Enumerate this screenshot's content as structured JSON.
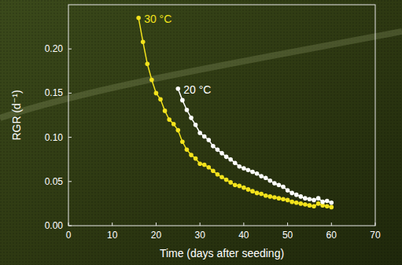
{
  "chart_data": {
    "type": "line",
    "x_label": "Time  (days after seeding)",
    "y_label": "RGR (d⁻¹)",
    "x": [
      16,
      17,
      18,
      19,
      20,
      21,
      22,
      23,
      24,
      25,
      26,
      27,
      28,
      29,
      30,
      31,
      32,
      33,
      34,
      35,
      36,
      37,
      38,
      39,
      40,
      41,
      42,
      43,
      44,
      45,
      46,
      47,
      48,
      49,
      50,
      51,
      52,
      53,
      54,
      55,
      56,
      57,
      58,
      59,
      60
    ],
    "series": [
      {
        "name": "30 °C",
        "color": "#f2e21c",
        "marker": "circle",
        "line_style": "solid",
        "values": [
          0.235,
          0.208,
          0.183,
          0.165,
          0.15,
          0.143,
          0.13,
          0.12,
          0.115,
          0.108,
          0.095,
          0.086,
          0.08,
          0.076,
          0.07,
          0.069,
          0.066,
          0.062,
          0.058,
          0.055,
          0.052,
          0.049,
          0.046,
          0.045,
          0.043,
          0.041,
          0.039,
          0.037,
          0.036,
          0.034,
          0.033,
          0.032,
          0.031,
          0.03,
          0.029,
          0.027,
          0.026,
          0.025,
          0.024,
          0.023,
          0.022,
          0.025,
          0.023,
          0.022,
          0.021
        ]
      },
      {
        "name": "20 °C",
        "color": "#ffffff",
        "marker": "circle",
        "line_style": "solid",
        "values": [
          null,
          null,
          null,
          null,
          null,
          null,
          null,
          null,
          null,
          0.155,
          0.142,
          0.131,
          0.122,
          0.114,
          0.105,
          0.101,
          0.097,
          0.09,
          0.086,
          0.082,
          0.078,
          0.075,
          0.071,
          0.067,
          0.065,
          0.063,
          0.061,
          0.059,
          0.056,
          0.054,
          0.051,
          0.048,
          0.046,
          0.044,
          0.04,
          0.037,
          0.035,
          0.033,
          0.031,
          0.03,
          0.029,
          0.031,
          0.027,
          0.028,
          0.026
        ]
      }
    ],
    "xlim": [
      0,
      70
    ],
    "xticks": [
      0,
      10,
      20,
      30,
      40,
      50,
      60,
      70
    ],
    "ylim": [
      0,
      0.25
    ],
    "yticks": [
      {
        "value": 0,
        "label": "0.00"
      },
      {
        "value": 0.05,
        "label": "0.05"
      },
      {
        "value": 0.1,
        "label": "0.10"
      },
      {
        "value": 0.15,
        "label": "0.15"
      },
      {
        "value": 0.2,
        "label": "0.20"
      }
    ],
    "grid": false
  }
}
